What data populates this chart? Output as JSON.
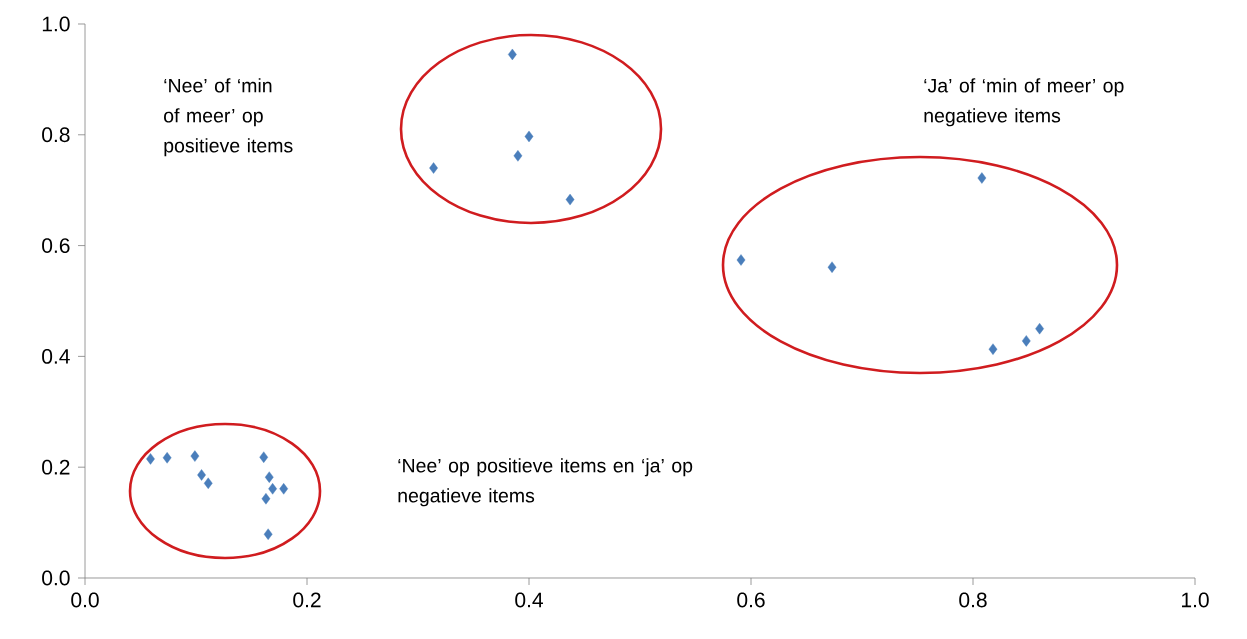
{
  "chart_data": {
    "type": "scatter",
    "x": [
      0.059,
      0.074,
      0.099,
      0.105,
      0.111,
      0.161,
      0.166,
      0.169,
      0.179,
      0.163,
      0.165,
      0.385,
      0.314,
      0.39,
      0.4,
      0.437,
      0.591,
      0.673,
      0.808,
      0.818,
      0.848,
      0.86
    ],
    "values": [
      0.215,
      0.217,
      0.22,
      0.186,
      0.171,
      0.218,
      0.182,
      0.161,
      0.161,
      0.143,
      0.079,
      0.945,
      0.74,
      0.762,
      0.797,
      0.683,
      0.574,
      0.561,
      0.722,
      0.413,
      0.428,
      0.45
    ],
    "color": "#4a7ebb",
    "marker": "diamond",
    "xlim": [
      0,
      1
    ],
    "ylim": [
      0,
      1
    ],
    "xticks": [
      {
        "value": 0,
        "label": "0.0"
      },
      0.2,
      0.4,
      0.6,
      0.8,
      {
        "value": 1,
        "label": "1.0"
      }
    ],
    "yticks": [
      {
        "value": 0,
        "label": "0.0"
      },
      0.2,
      0.4,
      0.6,
      0.8,
      {
        "value": 1,
        "label": "1.0"
      }
    ],
    "annotations": [
      "‘Nee’ of ‘min of meer’ op positieve items",
      "‘Ja’ of ‘min of meer’ op negatieve items",
      "‘Nee’ op positieve items en ‘ja’ op negatieve items"
    ]
  }
}
